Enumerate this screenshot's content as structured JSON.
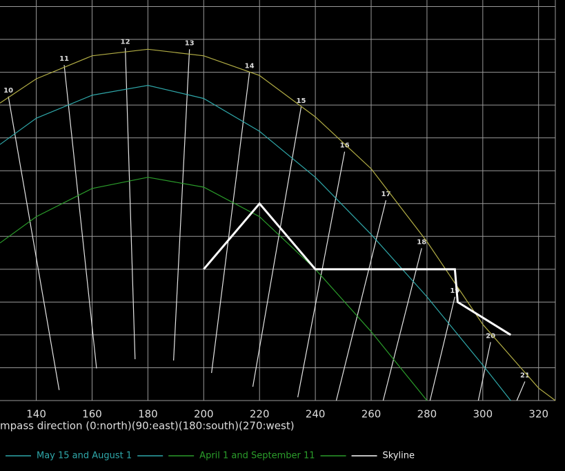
{
  "chart_data": {
    "type": "line",
    "xlabel": "mpass direction (0:north)(90:east)(180:south)(270:west)",
    "xlim": [
      127,
      326
    ],
    "ylim": [
      0,
      61
    ],
    "xticks": [
      140,
      160,
      180,
      200,
      220,
      240,
      260,
      280,
      300,
      320
    ],
    "yticks": [
      0,
      5,
      10,
      15,
      20,
      25,
      30,
      35,
      40,
      45,
      50,
      55,
      60
    ],
    "grid": true,
    "series": [
      {
        "color": "#b3ae45",
        "x": [
          127,
          140,
          160,
          180,
          200,
          220,
          240,
          260,
          280,
          300,
          320,
          326
        ],
        "values": [
          45.3,
          49,
          52.5,
          53.5,
          52.5,
          49.5,
          43.2,
          35.3,
          24.2,
          11.6,
          1.9,
          0
        ]
      },
      {
        "name": "May 15 and August 1",
        "color": "#2fa8aa",
        "x": [
          127,
          140,
          160,
          180,
          200,
          220,
          240,
          260,
          280,
          300,
          310
        ],
        "values": [
          39,
          43,
          46.5,
          48,
          46,
          41,
          34,
          25.3,
          15.8,
          5.4,
          0
        ]
      },
      {
        "name": "April 1 and September 11",
        "color": "#2b9e2b",
        "x": [
          127,
          140,
          160,
          180,
          200,
          220,
          240,
          260,
          280
        ],
        "values": [
          24,
          28,
          32.3,
          34,
          32.5,
          28,
          20,
          10.5,
          0
        ]
      },
      {
        "name": "Skyline",
        "color": "#ffffff",
        "x": [
          200,
          220,
          240,
          290,
          291,
          310
        ],
        "values": [
          20,
          30,
          20,
          20,
          15,
          10
        ]
      }
    ],
    "hour_lines": [
      {
        "label": "10",
        "x": [
          130,
          148.2
        ],
        "y": [
          46.3,
          1.6
        ]
      },
      {
        "label": "11",
        "x": [
          150,
          161.6
        ],
        "y": [
          51.1,
          4.9
        ]
      },
      {
        "label": "12",
        "x": [
          171.9,
          175.4
        ],
        "y": [
          53.7,
          6.3
        ]
      },
      {
        "label": "13",
        "x": [
          194.9,
          189.2
        ],
        "y": [
          53.5,
          6.1
        ]
      },
      {
        "label": "14",
        "x": [
          216.4,
          202.8
        ],
        "y": [
          50,
          4.2
        ]
      },
      {
        "label": "15",
        "x": [
          234.9,
          217.6
        ],
        "y": [
          44.7,
          2.1
        ]
      },
      {
        "label": "16",
        "x": [
          250.5,
          233.7
        ],
        "y": [
          37.9,
          0.5
        ]
      },
      {
        "label": "17",
        "x": [
          265.3,
          247.5
        ],
        "y": [
          30.5,
          0
        ]
      },
      {
        "label": "18",
        "x": [
          278.1,
          264.3
        ],
        "y": [
          23.2,
          0
        ]
      },
      {
        "label": "19",
        "x": [
          290,
          281.1
        ],
        "y": [
          15.8,
          0
        ]
      },
      {
        "label": "20",
        "x": [
          302.8,
          298.4
        ],
        "y": [
          8.9,
          0
        ]
      },
      {
        "label": "21",
        "x": [
          315.1,
          312.2
        ],
        "y": [
          2.9,
          0
        ]
      }
    ]
  }
}
